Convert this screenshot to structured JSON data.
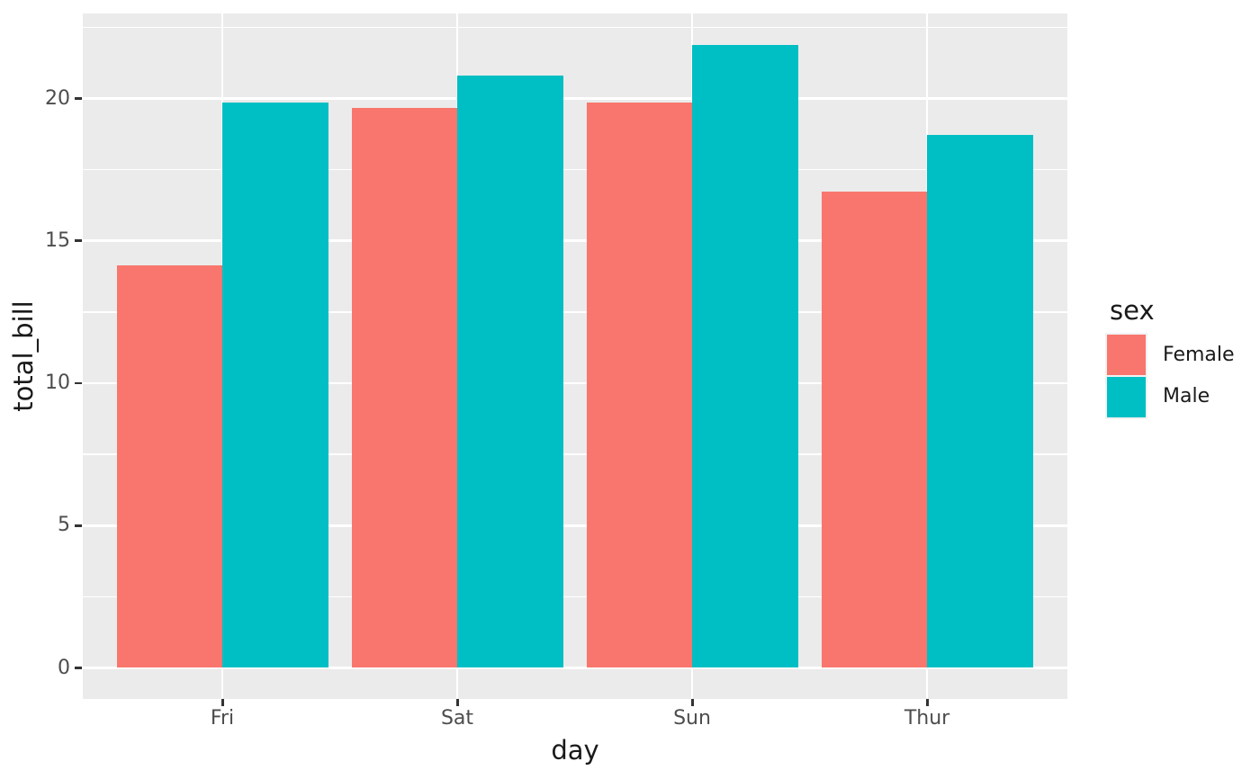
{
  "chart_data": {
    "type": "bar",
    "title": "",
    "xlabel": "day",
    "ylabel": "total_bill",
    "legend_title": "sex",
    "legend_position": "right",
    "grid": true,
    "categories": [
      "Fri",
      "Sat",
      "Sun",
      "Thur"
    ],
    "series": [
      {
        "name": "Female",
        "color": "#F8766D",
        "values": [
          14.15,
          19.68,
          19.87,
          16.72
        ]
      },
      {
        "name": "Male",
        "color": "#00BFC4",
        "values": [
          19.86,
          20.8,
          21.89,
          18.71
        ]
      }
    ],
    "ylim": [
      0,
      23
    ],
    "yticks": [
      0,
      5,
      10,
      15,
      20
    ],
    "ytick_labels": [
      "0",
      "5",
      "10",
      "15",
      "20"
    ],
    "yminor_ticks": [
      2.5,
      7.5,
      12.5,
      17.5,
      22.5
    ],
    "panel_bg": "#EBEBEB",
    "grid_color": "#FFFFFF",
    "tick_text_color": "#4D4D4D",
    "title_text_color": "#1A1A1A"
  }
}
